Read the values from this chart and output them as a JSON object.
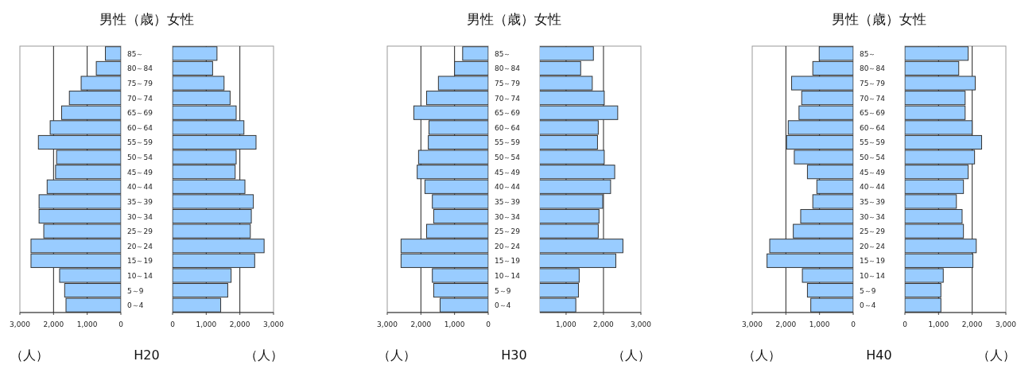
{
  "chart_data": [
    {
      "type": "bar",
      "orientation": "horizontal",
      "title": "男性（歳）女性",
      "xlabel": "（人）",
      "annotations": [
        "H20"
      ],
      "categories": [
        "85～",
        "80～84",
        "75～79",
        "70～74",
        "65～69",
        "60～64",
        "55～59",
        "50～54",
        "45～49",
        "40～44",
        "35～39",
        "30～34",
        "25～29",
        "20～24",
        "15～19",
        "10～14",
        "5～9",
        "0～4"
      ],
      "values": [
        460,
        730,
        1180,
        1530,
        1760,
        2100,
        2450,
        1910,
        1940,
        2190,
        2430,
        2430,
        2290,
        2670,
        2670,
        1820,
        1670,
        1630
      ],
      "color": "#99ccff",
      "xlim": [
        3000,
        0
      ],
      "xticks": [
        {
          "value": 3000,
          "label": "3,000"
        },
        {
          "value": 2000,
          "label": "2,000"
        },
        {
          "value": 1000,
          "label": "1,000"
        },
        {
          "value": 0,
          "label": "0"
        }
      ],
      "grid": "x"
    },
    {
      "type": "bar",
      "orientation": "horizontal",
      "xlabel": "（人）",
      "categories": [
        null,
        null,
        null,
        null,
        null,
        null,
        null,
        null,
        null,
        null,
        null,
        null,
        null,
        null,
        null,
        null,
        null,
        null
      ],
      "values": [
        1320,
        1190,
        1530,
        1710,
        1890,
        2120,
        2480,
        1890,
        1860,
        2150,
        2400,
        2340,
        2310,
        2720,
        2440,
        1740,
        1640,
        1430
      ],
      "color": "#99ccff",
      "xlim": [
        0,
        3000
      ],
      "xticks": [
        {
          "value": 0,
          "label": "0"
        },
        {
          "value": 1000,
          "label": "1,000"
        },
        {
          "value": 2000,
          "label": "2,000"
        },
        {
          "value": 3000,
          "label": "3,000"
        }
      ],
      "grid": "x",
      "tick_labels": "x"
    },
    {
      "type": "bar",
      "orientation": "horizontal",
      "title": "男性（歳）女性",
      "xlabel": "（人）",
      "annotations": [
        "H30"
      ],
      "categories": [
        "85～",
        "80～84",
        "75～79",
        "70～74",
        "65～69",
        "60～64",
        "55～59",
        "50～54",
        "45～49",
        "40～44",
        "35～39",
        "30～34",
        "25～29",
        "20～24",
        "15～19",
        "10～14",
        "5～9",
        "0～4"
      ],
      "values": [
        760,
        1000,
        1480,
        1830,
        2210,
        1760,
        1780,
        2070,
        2110,
        1880,
        1660,
        1620,
        1830,
        2590,
        2590,
        1660,
        1620,
        1430
      ],
      "color": "#99ccff",
      "xlim": [
        3000,
        0
      ],
      "xticks": [
        {
          "value": 3000,
          "label": "3,000"
        },
        {
          "value": 2000,
          "label": "2,000"
        },
        {
          "value": 1000,
          "label": "1,000"
        },
        {
          "value": 0,
          "label": "0"
        }
      ],
      "grid": "x"
    },
    {
      "type": "bar",
      "orientation": "horizontal",
      "xlabel": "（人）",
      "categories": [
        null,
        null,
        null,
        null,
        null,
        null,
        null,
        null,
        null,
        null,
        null,
        null,
        null,
        null,
        null,
        null,
        null,
        null
      ],
      "values": [
        1730,
        1390,
        1700,
        2020,
        2380,
        1860,
        1840,
        2020,
        2300,
        2190,
        1980,
        1880,
        1860,
        2520,
        2330,
        1350,
        1330,
        1260
      ],
      "color": "#99ccff",
      "xlim": [
        300,
        3000
      ],
      "xticks": [
        {
          "value": 1000,
          "label": "1,000"
        },
        {
          "value": 2000,
          "label": "2,000"
        },
        {
          "value": 3000,
          "label": "3,000"
        }
      ],
      "grid": "x",
      "tick_labels": "x"
    },
    {
      "type": "bar",
      "orientation": "horizontal",
      "title": "男性（歳）女性",
      "xlabel": "（人）",
      "annotations": [
        "H40"
      ],
      "categories": [
        "85～",
        "80～84",
        "75～79",
        "70～74",
        "65～69",
        "60～64",
        "55～59",
        "50～54",
        "45～49",
        "40～44",
        "35～39",
        "30～34",
        "25～29",
        "20～24",
        "15～19",
        "10～14",
        "5～9",
        "0～4"
      ],
      "values": [
        1010,
        1200,
        1830,
        1530,
        1610,
        1930,
        1980,
        1750,
        1360,
        1080,
        1200,
        1560,
        1780,
        2480,
        2560,
        1510,
        1360,
        1260
      ],
      "color": "#99ccff",
      "xlim": [
        3000,
        0
      ],
      "xticks": [
        {
          "value": 3000,
          "label": "3,000"
        },
        {
          "value": 2000,
          "label": "2,000"
        },
        {
          "value": 1000,
          "label": "1,000"
        },
        {
          "value": 0,
          "label": "0"
        }
      ],
      "grid": "x"
    },
    {
      "type": "bar",
      "orientation": "horizontal",
      "xlabel": "（人）",
      "categories": [
        null,
        null,
        null,
        null,
        null,
        null,
        null,
        null,
        null,
        null,
        null,
        null,
        null,
        null,
        null,
        null,
        null,
        null
      ],
      "values": [
        1880,
        1600,
        2090,
        1790,
        1790,
        2000,
        2280,
        2070,
        1880,
        1740,
        1530,
        1700,
        1740,
        2120,
        2020,
        1140,
        1070,
        1070
      ],
      "color": "#99ccff",
      "xlim": [
        0,
        3000
      ],
      "xticks": [
        {
          "value": 0,
          "label": "0"
        },
        {
          "value": 1000,
          "label": "1,000"
        },
        {
          "value": 2000,
          "label": "2,000"
        },
        {
          "value": 3000,
          "label": "3,000"
        }
      ],
      "grid": "x",
      "tick_labels": "x"
    }
  ]
}
